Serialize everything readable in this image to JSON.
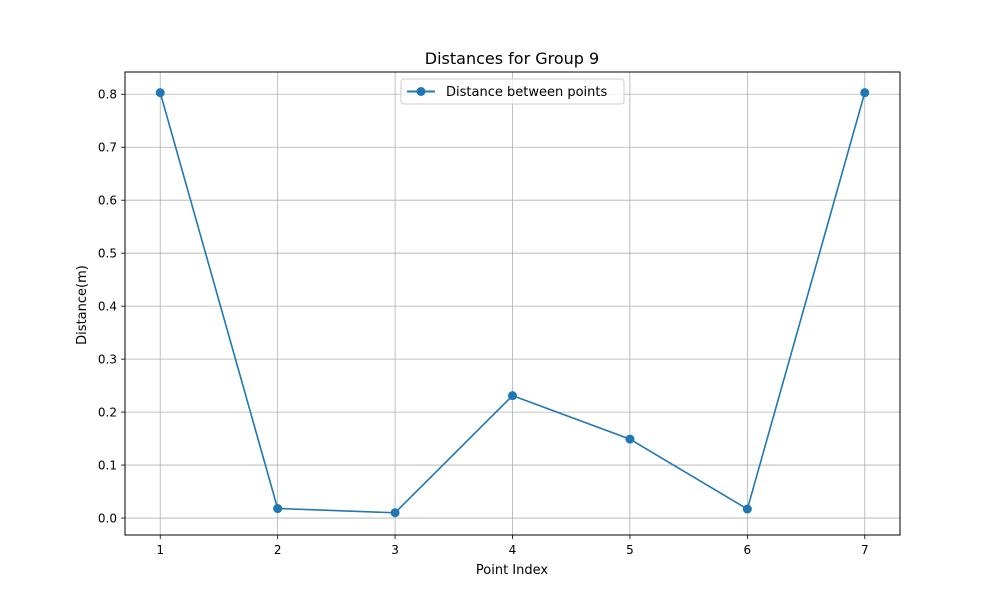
{
  "chart_data": {
    "type": "line",
    "title": "Distances for Group 9",
    "xlabel": "Point Index",
    "ylabel": "Distance(m)",
    "x": [
      1,
      2,
      3,
      4,
      5,
      6,
      7
    ],
    "xlim": [
      0.7,
      7.3
    ],
    "ylim": [
      -0.032,
      0.842
    ],
    "x_ticks": [
      1,
      2,
      3,
      4,
      5,
      6,
      7
    ],
    "y_ticks": [
      0.0,
      0.1,
      0.2,
      0.3,
      0.4,
      0.5,
      0.6,
      0.7,
      0.8
    ],
    "y_tick_labels": [
      "0.0",
      "0.1",
      "0.2",
      "0.3",
      "0.4",
      "0.5",
      "0.6",
      "0.7",
      "0.8"
    ],
    "grid": true,
    "legend_position": "top-center",
    "series": [
      {
        "name": "Distance between points",
        "marker": "circle",
        "color": "#1f77b4",
        "values": [
          0.803,
          0.018,
          0.01,
          0.231,
          0.149,
          0.017,
          0.803
        ]
      }
    ]
  }
}
